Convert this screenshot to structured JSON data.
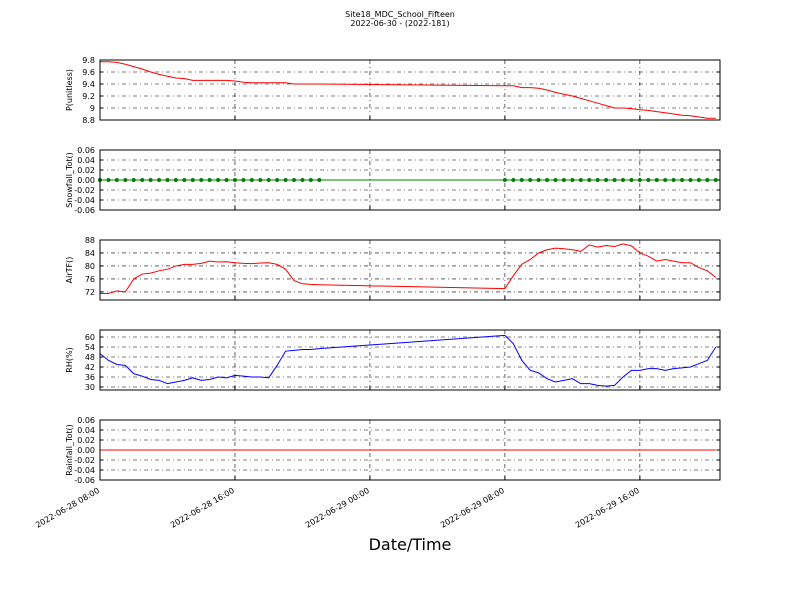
{
  "chart_data": {
    "type": "line",
    "title": "Site18_MDC_School_Fifteen",
    "subtitle": "2022-06-30 - (2022-181)",
    "xlabel": "Date/Time",
    "xlim": [
      "2022-06-28 08:00",
      "2022-06-29 20:45"
    ],
    "xticks": [
      "2022-06-28 08:00",
      "2022-06-28 16:00",
      "2022-06-29 00:00",
      "2022-06-29 08:00",
      "2022-06-29 16:00"
    ],
    "grid": true,
    "x": [
      "2022-06-28 08:00",
      "2022-06-28 08:30",
      "2022-06-28 09:00",
      "2022-06-28 09:30",
      "2022-06-28 10:00",
      "2022-06-28 10:30",
      "2022-06-28 11:00",
      "2022-06-28 11:30",
      "2022-06-28 12:00",
      "2022-06-28 12:30",
      "2022-06-28 13:00",
      "2022-06-28 13:30",
      "2022-06-28 14:00",
      "2022-06-28 14:30",
      "2022-06-28 15:00",
      "2022-06-28 15:30",
      "2022-06-28 16:00",
      "2022-06-28 16:30",
      "2022-06-28 17:00",
      "2022-06-28 17:30",
      "2022-06-28 18:00",
      "2022-06-28 18:30",
      "2022-06-28 19:00",
      "2022-06-28 19:30",
      "2022-06-28 20:00",
      "2022-06-28 20:30",
      "2022-06-28 21:00",
      "2022-06-29 08:00",
      "2022-06-29 08:30",
      "2022-06-29 09:00",
      "2022-06-29 09:30",
      "2022-06-29 10:00",
      "2022-06-29 10:30",
      "2022-06-29 11:00",
      "2022-06-29 11:30",
      "2022-06-29 12:00",
      "2022-06-29 12:30",
      "2022-06-29 13:00",
      "2022-06-29 13:30",
      "2022-06-29 14:00",
      "2022-06-29 14:30",
      "2022-06-29 15:00",
      "2022-06-29 15:30",
      "2022-06-29 16:00",
      "2022-06-29 16:30",
      "2022-06-29 17:00",
      "2022-06-29 17:30",
      "2022-06-29 18:00",
      "2022-06-29 18:30",
      "2022-06-29 19:00",
      "2022-06-29 19:30",
      "2022-06-29 20:00",
      "2022-06-29 20:30"
    ],
    "panels": [
      {
        "ylabel": "P(unitless)",
        "ylim": [
          8.8,
          9.8
        ],
        "yticks": [
          8.8,
          9.0,
          9.2,
          9.4,
          9.6,
          9.8
        ],
        "series": [
          {
            "color": "#ff0000",
            "marker": false,
            "values": [
              9.77,
              9.77,
              9.76,
              9.73,
              9.69,
              9.65,
              9.6,
              9.56,
              9.53,
              9.5,
              9.49,
              9.46,
              9.46,
              9.46,
              9.46,
              9.46,
              9.45,
              9.43,
              9.42,
              9.42,
              9.42,
              9.42,
              9.42,
              9.4,
              9.4,
              9.4,
              9.4,
              9.37,
              9.37,
              9.34,
              9.34,
              9.33,
              9.3,
              9.26,
              9.23,
              9.2,
              9.16,
              9.12,
              9.08,
              9.04,
              9.0,
              9.0,
              8.99,
              8.97,
              8.96,
              8.94,
              8.92,
              8.9,
              8.88,
              8.87,
              8.85,
              8.83,
              8.83
            ]
          }
        ]
      },
      {
        "ylabel": "Snowfall_Tot()",
        "ylim": [
          -0.06,
          0.06
        ],
        "yticks": [
          -0.06,
          -0.04,
          -0.02,
          {
            "value": 0,
            "label": "0.00"
          },
          0.02,
          0.04,
          0.06
        ],
        "series": [
          {
            "color": "#008000",
            "marker": true,
            "values": [
              0,
              0,
              0,
              0,
              0,
              0,
              0,
              0,
              0,
              0,
              0,
              0,
              0,
              0,
              0,
              0,
              0,
              0,
              0,
              0,
              0,
              0,
              0,
              0,
              0,
              0,
              0,
              0,
              0,
              0,
              0,
              0,
              0,
              0,
              0,
              0,
              0,
              0,
              0,
              0,
              0,
              0,
              0,
              0,
              0,
              0,
              0,
              0,
              0,
              0,
              0,
              0,
              0
            ]
          }
        ]
      },
      {
        "ylabel": "AirTF()",
        "ylim": [
          69.5,
          88
        ],
        "yticks": [
          72,
          76,
          80,
          84,
          88
        ],
        "series": [
          {
            "color": "#ff0000",
            "marker": false,
            "values": [
              71.5,
              71.5,
              72.3,
              72,
              76,
              77.5,
              77.8,
              78.5,
              79,
              80,
              80.5,
              80.5,
              80.8,
              81.5,
              81.2,
              81.3,
              81,
              80.8,
              80.7,
              80.9,
              81,
              80.5,
              79,
              75.5,
              74.5,
              74.3,
              74.2,
              73,
              77,
              80.5,
              82,
              84,
              85,
              85.5,
              85.3,
              85,
              84.5,
              86.5,
              85.8,
              86.3,
              86,
              86.8,
              86.2,
              84,
              83,
              81.5,
              82,
              81.5,
              81,
              81,
              79.5,
              78.5,
              76.5
            ]
          }
        ]
      },
      {
        "ylabel": "RH(%)",
        "ylim": [
          28.2,
          64.2
        ],
        "yticks": [
          30,
          36,
          42,
          48,
          54,
          60
        ],
        "series": [
          {
            "color": "#0000ff",
            "marker": false,
            "values": [
              50,
              46,
              43.5,
              43,
              38,
              36.5,
              34.5,
              34,
              32,
              33,
              34,
              35.5,
              34,
              34.5,
              36,
              35.5,
              37,
              36.5,
              36,
              36,
              35.5,
              43,
              51.5,
              52,
              52.5,
              52.5,
              53,
              61,
              56,
              46,
              40,
              38.5,
              35,
              33,
              34,
              35,
              32,
              32,
              31,
              30.5,
              31,
              36,
              40,
              40,
              41,
              41,
              40,
              41,
              41.5,
              42,
              44,
              46,
              54
            ]
          }
        ]
      },
      {
        "ylabel": "Rainfall_Tot()",
        "ylim": [
          -0.06,
          0.06
        ],
        "yticks": [
          -0.06,
          -0.04,
          -0.02,
          {
            "value": 0,
            "label": "0.00"
          },
          0.02,
          0.04,
          0.06
        ],
        "series": [
          {
            "color": "#ff0000",
            "marker": false,
            "values": [
              0,
              0,
              0,
              0,
              0,
              0,
              0,
              0,
              0,
              0,
              0,
              0,
              0,
              0,
              0,
              0,
              0,
              0,
              0,
              0,
              0,
              0,
              0,
              0,
              0,
              0,
              0,
              0,
              0,
              0,
              0,
              0,
              0,
              0,
              0,
              0,
              0,
              0,
              0,
              0,
              0,
              0,
              0,
              0,
              0,
              0,
              0,
              0,
              0,
              0,
              0,
              0,
              0
            ]
          }
        ]
      }
    ]
  }
}
